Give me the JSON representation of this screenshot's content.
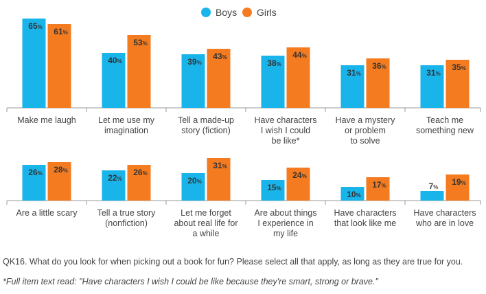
{
  "chart_data": {
    "type": "bar",
    "legend": {
      "position": "top-center",
      "entries": [
        "Boys",
        "Girls"
      ]
    },
    "colors": {
      "Boys": "#18b4ea",
      "Girls": "#f47b20"
    },
    "ylim": [
      0,
      70
    ],
    "value_suffix": "%",
    "panels": [
      {
        "categories": [
          "Make me laugh",
          "Let me use my imagination",
          "Tell a made-up story (fiction)",
          "Have characters I wish I could be like*",
          "Have a mystery or problem to solve",
          "Teach me something new"
        ],
        "category_lines": [
          [
            "Make me laugh"
          ],
          [
            "Let me use my",
            "imagination"
          ],
          [
            "Tell a made-up",
            "story (fiction)"
          ],
          [
            "Have characters",
            "I wish I could",
            "be like*"
          ],
          [
            "Have a mystery",
            "or problem",
            "to solve"
          ],
          [
            "Teach me",
            "something new"
          ]
        ],
        "series": [
          {
            "name": "Boys",
            "values": [
              65,
              40,
              39,
              38,
              31,
              31
            ]
          },
          {
            "name": "Girls",
            "values": [
              61,
              53,
              43,
              44,
              36,
              35
            ]
          }
        ]
      },
      {
        "categories": [
          "Are a little scary",
          "Tell a true story (nonfiction)",
          "Let me forget about real life for a while",
          "Are about things I experience in my life",
          "Have characters that look like me",
          "Have characters who are in love"
        ],
        "category_lines": [
          [
            "Are a little scary"
          ],
          [
            "Tell a true story",
            "(nonfiction)"
          ],
          [
            "Let me forget",
            "about real life for",
            "a while"
          ],
          [
            "Are about things",
            "I experience in",
            "my life"
          ],
          [
            "Have characters",
            "that look like me"
          ],
          [
            "Have characters",
            "who are in love"
          ]
        ],
        "series": [
          {
            "name": "Boys",
            "values": [
              26,
              22,
              20,
              15,
              10,
              7
            ]
          },
          {
            "name": "Girls",
            "values": [
              28,
              26,
              31,
              24,
              17,
              19
            ]
          }
        ]
      }
    ]
  },
  "footer": {
    "question": "QK16. What do you look for when picking out a book for fun? Please select all that apply, as long as they are true for you.",
    "footnote": "*Full item text read: \"Have characters I wish I could be like because they're smart, strong or brave.\""
  }
}
